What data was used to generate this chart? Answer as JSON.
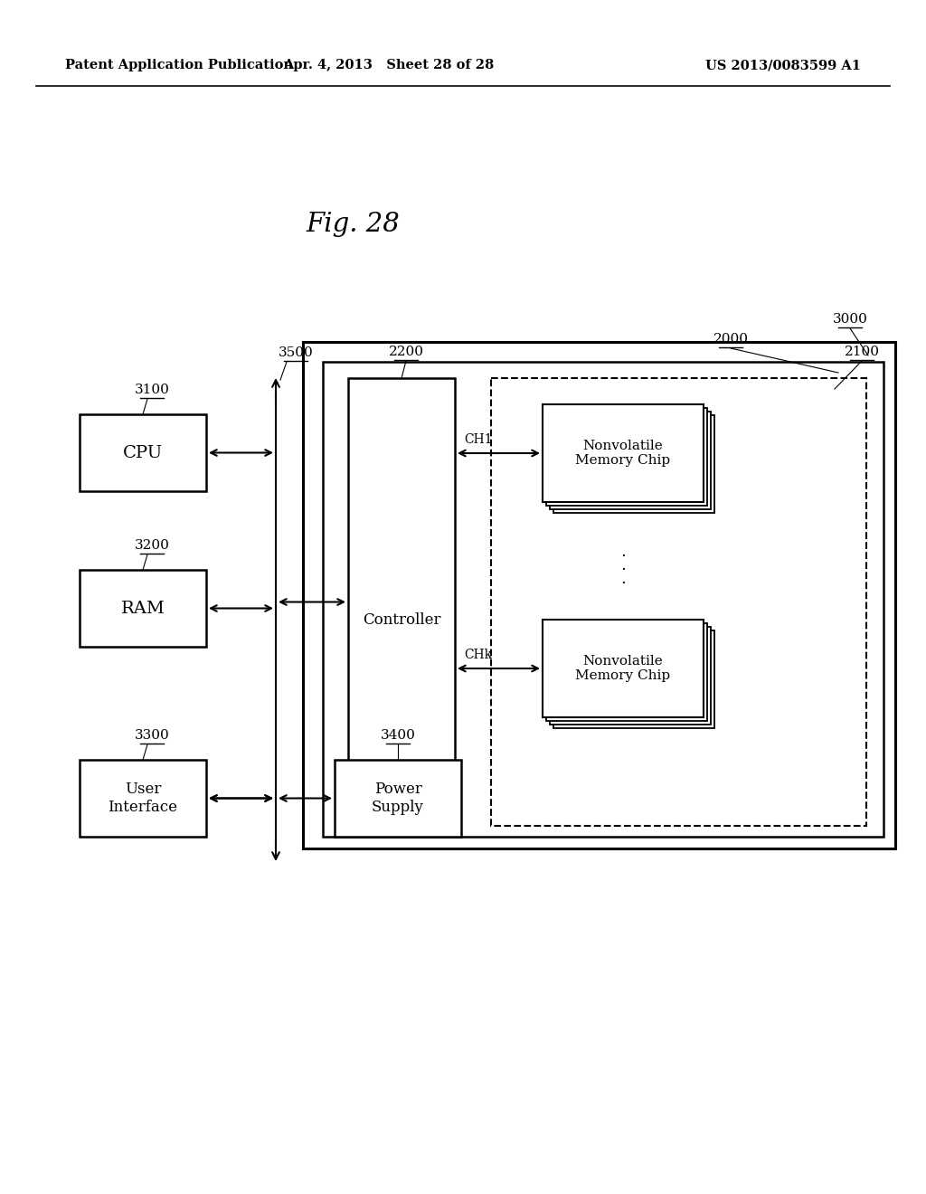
{
  "title": "Fig. 28",
  "header_left": "Patent Application Publication",
  "header_center": "Apr. 4, 2013   Sheet 28 of 28",
  "header_right": "US 2013/0083599 A1",
  "bg_color": "#ffffff",
  "label_3000": "3000",
  "label_2000": "2000",
  "label_2100": "2100",
  "label_2200": "2200",
  "label_3100": "3100",
  "label_3200": "3200",
  "label_3300": "3300",
  "label_3400": "3400",
  "label_3500": "3500",
  "text_cpu": "CPU",
  "text_ram": "RAM",
  "text_user_interface": "User\nInterface",
  "text_power_supply": "Power\nSupply",
  "text_controller": "Controller",
  "text_nvm_chip1": "Nonvolatile\nMemory Chip",
  "text_nvm_chip2": "Nonvolatile\nMemory Chip",
  "text_ch1": "CH1",
  "text_chk": "CHk",
  "dots": ". . ."
}
